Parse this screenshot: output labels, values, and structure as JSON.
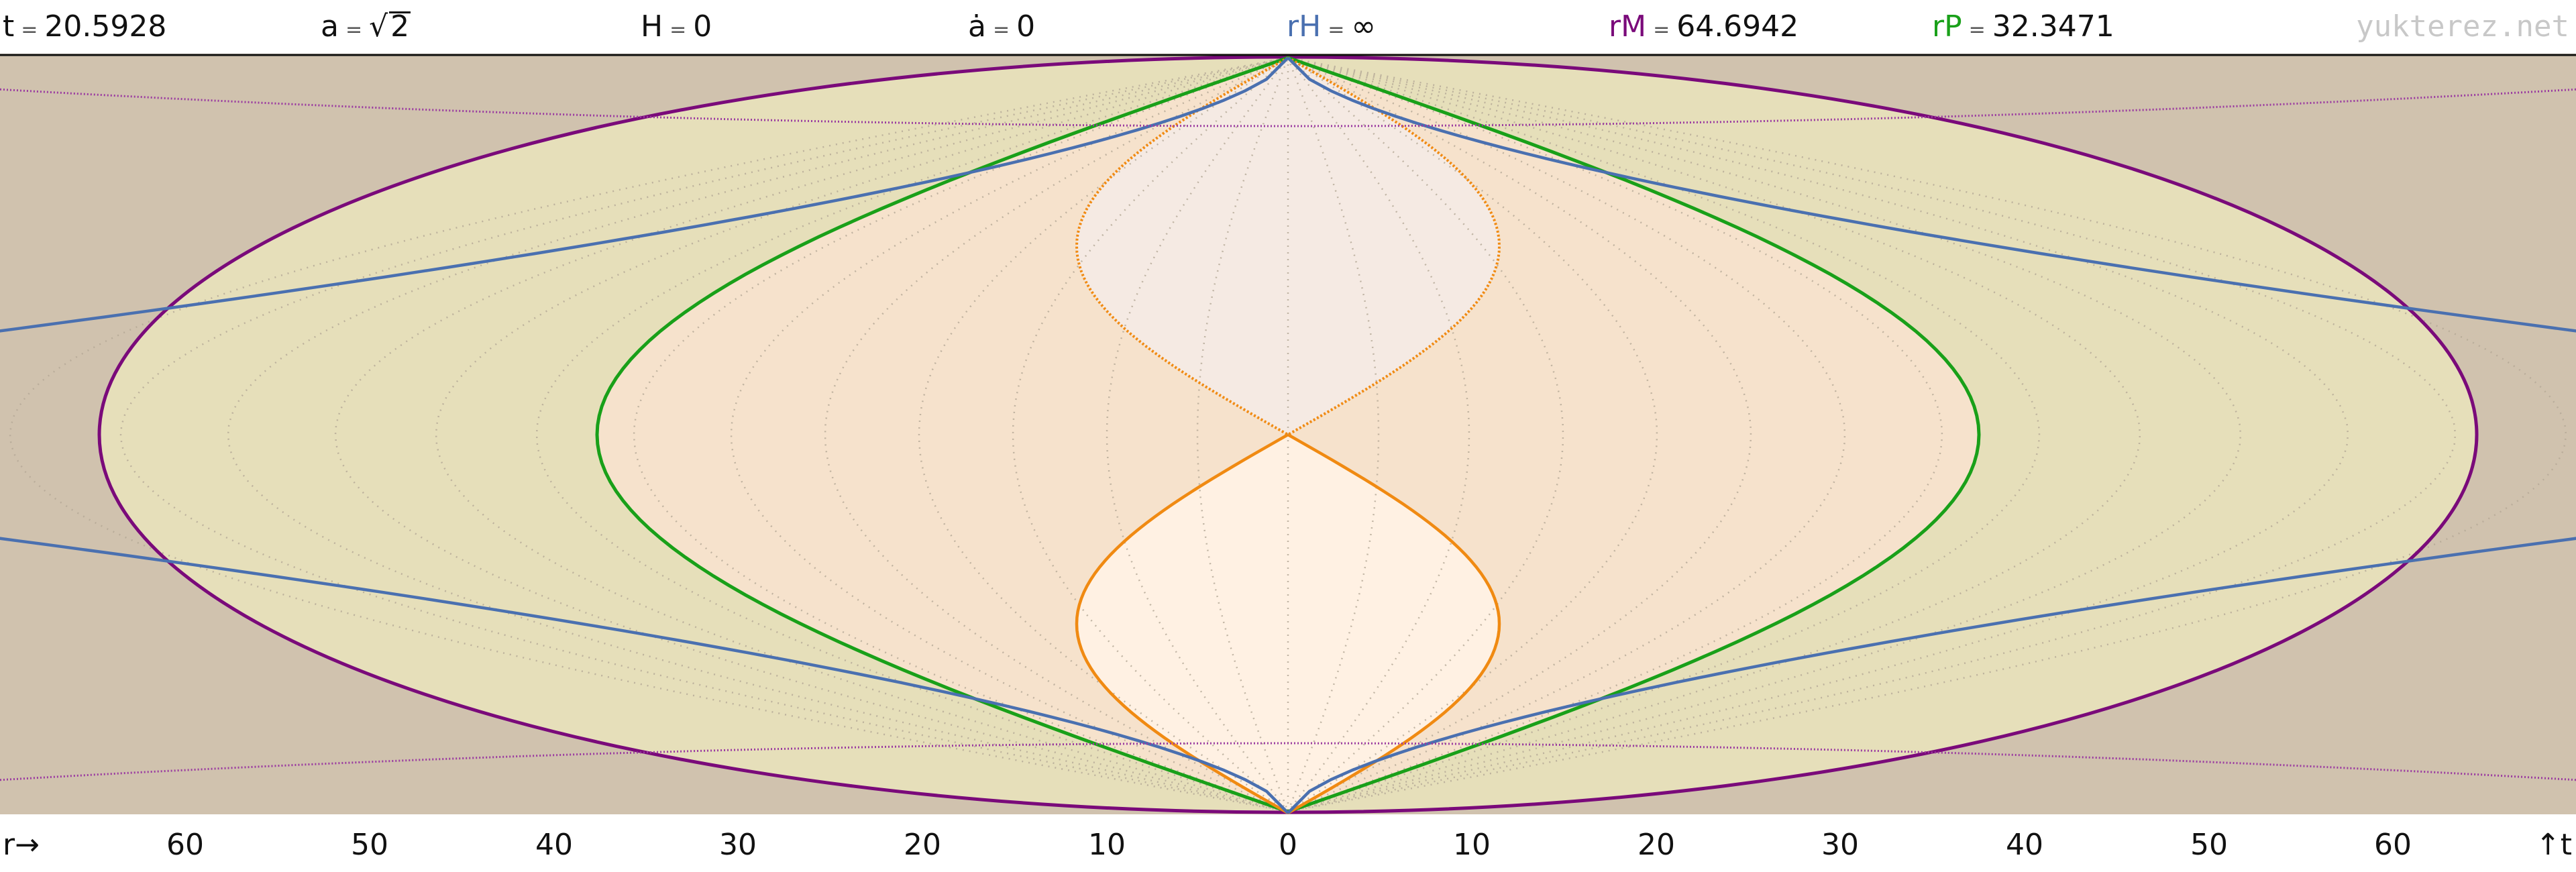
{
  "header": {
    "t": {
      "label": "t",
      "value": "20.5928",
      "color": "#111111"
    },
    "a": {
      "label": "a",
      "radical": "2",
      "color": "#111111"
    },
    "H": {
      "label": "H",
      "value": "0",
      "color": "#111111"
    },
    "adot": {
      "label": "ȧ",
      "value": "0",
      "color": "#111111"
    },
    "rH": {
      "label": "rH",
      "value": "∞",
      "color": "#4a70b0"
    },
    "rM": {
      "label": "rM",
      "value": "64.6942",
      "color": "#7a0a7a"
    },
    "rP": {
      "label": "rP",
      "value": "32.3471",
      "color": "#19a019"
    },
    "equals": "=",
    "brand": "yukterez.net"
  },
  "axis": {
    "r_label": "r→",
    "t_label": "↑t",
    "ticks": [
      "60",
      "50",
      "40",
      "30",
      "20",
      "10",
      "0",
      "10",
      "20",
      "30",
      "40",
      "50",
      "60"
    ]
  },
  "colors": {
    "background": "#d0c2ae",
    "rM_fill": "#e6dfba",
    "rP_fill": "#f6e2cc",
    "inner_fill": "#fff1e3",
    "horizon": "#4a70b0",
    "rM_curve": "#7a0a7a",
    "rP_curve": "#19a019",
    "orange": "#f08a12",
    "grid": "#b4a896"
  }
}
